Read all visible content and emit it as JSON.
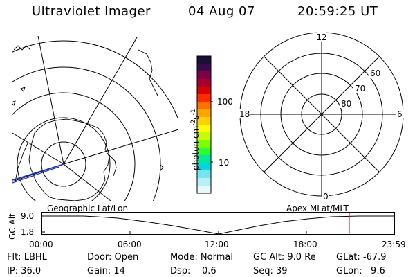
{
  "header": {
    "title": "Ultraviolet Imager",
    "date": "04 Aug 07",
    "time": "20:59:25 UT"
  },
  "colorbar": {
    "unit": "photon cm",
    "unit_sup1": "-2",
    "unit_mid": "s",
    "unit_sup2": "-1",
    "tick_high": "100",
    "tick_low": "10",
    "colors": [
      "#1c0f37",
      "#3a0a4f",
      "#7a0048",
      "#a8002d",
      "#d90000",
      "#ff2a00",
      "#ff6f00",
      "#ffa500",
      "#ffd000",
      "#ffff00",
      "#c8ff00",
      "#7dff00",
      "#2cff2c",
      "#00e89a",
      "#00d7e0",
      "#73e7ef",
      "#b8f1f5",
      "#e7f8fa"
    ]
  },
  "geo_map": {
    "label": "Geographic Lat/Lon"
  },
  "apex_map": {
    "label": "Apex MLat/MLT",
    "mlt_top": "12",
    "mlt_left": "18",
    "mlt_right": "6",
    "mlt_bottom": "0",
    "lat60": "60",
    "lat70": "70",
    "lat80": "80"
  },
  "altitude_plot": {
    "ylabel": "GC Alt",
    "yticks": [
      "9.0",
      "1.8"
    ],
    "xticks": [
      "00:00",
      "06:00",
      "12:00",
      "18:00",
      "23:59"
    ]
  },
  "footer": {
    "flt": "Flt: LBHL",
    "door": "Door: Open",
    "mode": "Mode: Normal",
    "gcalt": "GC Alt: 9.0 Re",
    "glat": "GLat: -67.9",
    "ip": "IP: 36.0",
    "gain": "Gain: 14",
    "dsp": "Dsp:    0.6",
    "seq": "Seq: 39",
    "glon": "GLon:   9.6"
  }
}
